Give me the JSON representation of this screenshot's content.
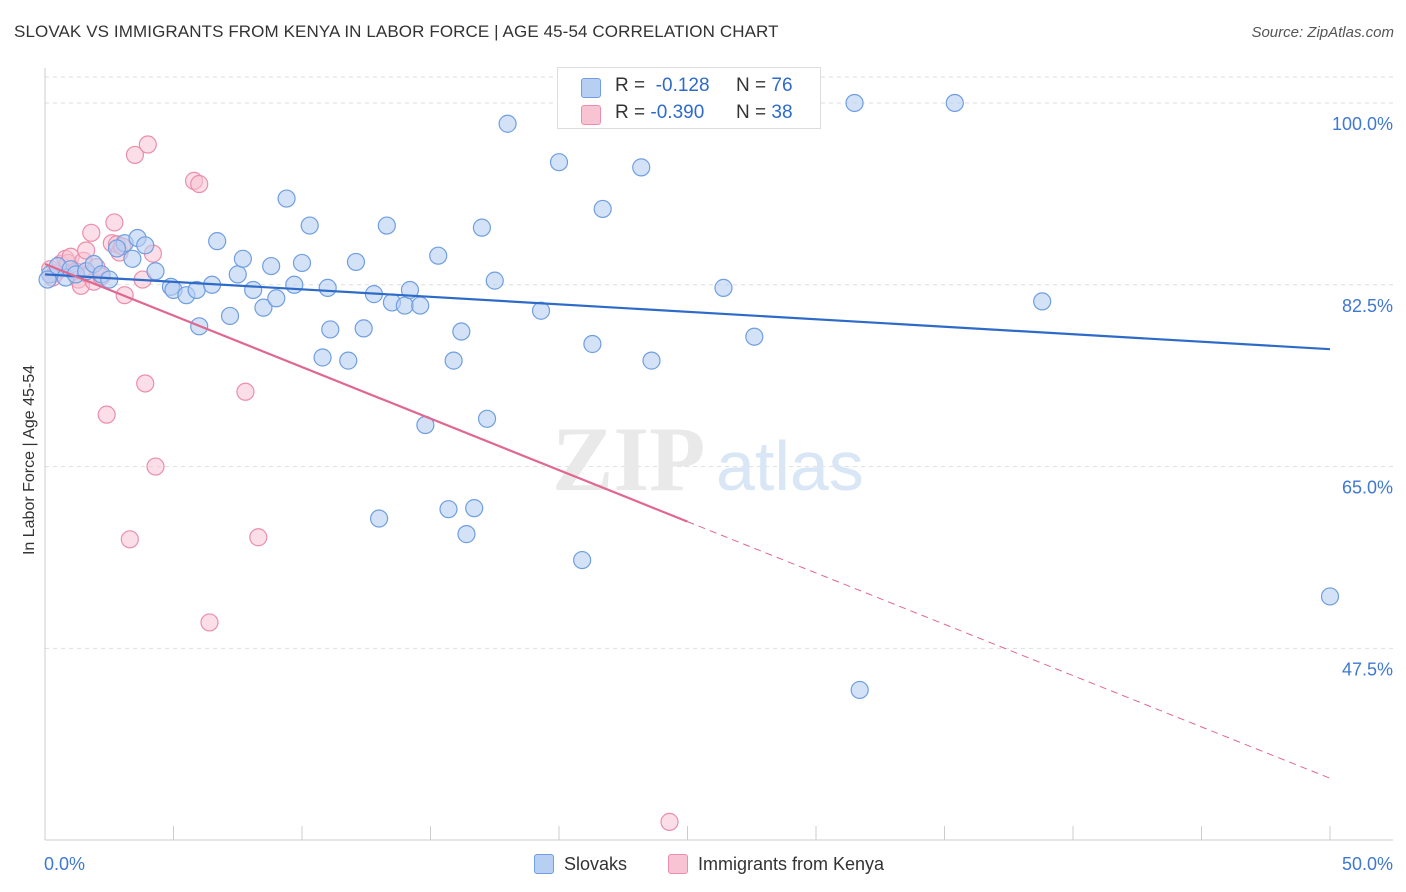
{
  "header": {
    "title": "SLOVAK VS IMMIGRANTS FROM KENYA IN LABOR FORCE | AGE 45-54 CORRELATION CHART",
    "source": "Source: ZipAtlas.com"
  },
  "stats_legend": {
    "rows": [
      {
        "r_label": "R =",
        "r_value": "-0.128",
        "n_label": "N =",
        "n_value": "76"
      },
      {
        "r_label": "R =",
        "r_value": "-0.390",
        "n_label": "N =",
        "n_value": "38"
      }
    ]
  },
  "bottom_legend": {
    "items": [
      {
        "label": "Slovaks"
      },
      {
        "label": "Immigrants from Kenya"
      }
    ]
  },
  "watermark": {
    "part1": "ZIP",
    "part2": "atlas"
  },
  "colors": {
    "series1_fill": "#b7cff3",
    "series1_stroke": "#6f9fe0",
    "series1_line": "#2e6bc9",
    "series2_fill": "#f8c3d3",
    "series2_stroke": "#ec8eab",
    "series2_line": "#e0678f",
    "tick_label": "#3f78d0",
    "grid": "#dedede"
  },
  "chart_data": {
    "type": "scatter",
    "title": "SLOVAK VS IMMIGRANTS FROM KENYA IN LABOR FORCE | AGE 45-54 CORRELATION CHART",
    "xlabel": "",
    "ylabel": "In Labor Force | Age 45-54",
    "xlim": [
      0,
      50
    ],
    "ylim": [
      30.5,
      102.5
    ],
    "x_tick_labels": [
      "0.0%",
      "50.0%"
    ],
    "y_ticks": [
      47.5,
      65.0,
      82.5,
      100.0
    ],
    "y_tick_labels": [
      "47.5%",
      "65.0%",
      "82.5%",
      "100.0%"
    ],
    "grid": "horizontal dashed",
    "series": [
      {
        "name": "Slovaks",
        "r": -0.128,
        "n": 76,
        "trend": {
          "x": [
            0,
            50
          ],
          "y": [
            83.5,
            76.3
          ]
        },
        "points": [
          [
            0.2,
            83.5
          ],
          [
            0.5,
            84.3
          ],
          [
            0.8,
            83.2
          ],
          [
            1.0,
            84.0
          ],
          [
            1.2,
            83.5
          ],
          [
            1.6,
            83.8
          ],
          [
            1.9,
            84.5
          ],
          [
            2.2,
            83.5
          ],
          [
            2.5,
            83.0
          ],
          [
            3.1,
            86.5
          ],
          [
            3.4,
            85.0
          ],
          [
            3.6,
            87.0
          ],
          [
            3.9,
            86.3
          ],
          [
            4.3,
            83.8
          ],
          [
            4.9,
            82.3
          ],
          [
            5.0,
            82.0
          ],
          [
            5.5,
            81.5
          ],
          [
            5.9,
            82.0
          ],
          [
            6.0,
            78.5
          ],
          [
            6.5,
            82.5
          ],
          [
            6.7,
            86.7
          ],
          [
            7.2,
            79.5
          ],
          [
            7.5,
            83.5
          ],
          [
            7.7,
            85.0
          ],
          [
            8.1,
            82.0
          ],
          [
            8.5,
            80.3
          ],
          [
            8.8,
            84.3
          ],
          [
            9.0,
            81.2
          ],
          [
            9.4,
            90.8
          ],
          [
            9.7,
            82.5
          ],
          [
            10.0,
            84.6
          ],
          [
            10.3,
            88.2
          ],
          [
            10.8,
            75.5
          ],
          [
            11.0,
            82.2
          ],
          [
            11.1,
            78.2
          ],
          [
            11.8,
            75.2
          ],
          [
            12.1,
            84.7
          ],
          [
            12.4,
            78.3
          ],
          [
            12.8,
            81.6
          ],
          [
            13.0,
            60.0
          ],
          [
            13.3,
            88.2
          ],
          [
            13.5,
            80.8
          ],
          [
            14.0,
            80.5
          ],
          [
            14.2,
            82.0
          ],
          [
            14.6,
            80.5
          ],
          [
            14.8,
            69.0
          ],
          [
            15.3,
            85.3
          ],
          [
            15.7,
            60.9
          ],
          [
            15.9,
            75.2
          ],
          [
            16.2,
            78.0
          ],
          [
            16.4,
            58.5
          ],
          [
            16.7,
            61.0
          ],
          [
            17.0,
            88.0
          ],
          [
            17.2,
            69.6
          ],
          [
            17.5,
            82.9
          ],
          [
            18.0,
            98.0
          ],
          [
            19.3,
            80.0
          ],
          [
            20.0,
            94.3
          ],
          [
            20.3,
            100.0
          ],
          [
            20.9,
            56.0
          ],
          [
            21.3,
            76.8
          ],
          [
            21.7,
            89.8
          ],
          [
            23.2,
            93.8
          ],
          [
            23.6,
            75.2
          ],
          [
            26.4,
            82.2
          ],
          [
            27.2,
            100.0
          ],
          [
            27.6,
            77.5
          ],
          [
            31.5,
            100.0
          ],
          [
            31.7,
            43.5
          ],
          [
            35.4,
            100.0
          ],
          [
            38.8,
            80.9
          ],
          [
            50.0,
            52.5
          ],
          [
            24.0,
            100.0
          ],
          [
            25.0,
            100.0
          ],
          [
            2.8,
            86.0
          ],
          [
            0.1,
            83.0
          ]
        ]
      },
      {
        "name": "Immigrants from Kenya",
        "r": -0.39,
        "n": 38,
        "trend": {
          "x": [
            0,
            25
          ],
          "y": [
            84.5,
            59.7
          ]
        },
        "trend_dashed": {
          "x": [
            25,
            50
          ],
          "y": [
            59.7,
            35.0
          ]
        },
        "points": [
          [
            0.2,
            84.0
          ],
          [
            0.4,
            83.6
          ],
          [
            0.6,
            84.5
          ],
          [
            0.8,
            85.0
          ],
          [
            0.9,
            84.6
          ],
          [
            1.0,
            85.2
          ],
          [
            1.2,
            83.8
          ],
          [
            1.3,
            83.0
          ],
          [
            1.4,
            82.4
          ],
          [
            1.5,
            84.8
          ],
          [
            1.6,
            85.8
          ],
          [
            1.7,
            83.5
          ],
          [
            1.8,
            87.5
          ],
          [
            1.9,
            82.8
          ],
          [
            2.0,
            84.2
          ],
          [
            2.2,
            83.3
          ],
          [
            2.4,
            70.0
          ],
          [
            2.6,
            86.5
          ],
          [
            2.7,
            88.5
          ],
          [
            2.8,
            86.4
          ],
          [
            2.9,
            85.6
          ],
          [
            3.0,
            86.2
          ],
          [
            3.1,
            81.5
          ],
          [
            3.3,
            58.0
          ],
          [
            3.5,
            95.0
          ],
          [
            3.8,
            83.0
          ],
          [
            3.9,
            73.0
          ],
          [
            4.0,
            96.0
          ],
          [
            4.2,
            85.5
          ],
          [
            4.3,
            65.0
          ],
          [
            5.8,
            92.5
          ],
          [
            6.0,
            92.2
          ],
          [
            6.4,
            50.0
          ],
          [
            7.8,
            72.2
          ],
          [
            8.3,
            58.2
          ],
          [
            24.3,
            30.8
          ],
          [
            24.7,
            100.0
          ],
          [
            0.3,
            83.2
          ]
        ]
      }
    ]
  }
}
